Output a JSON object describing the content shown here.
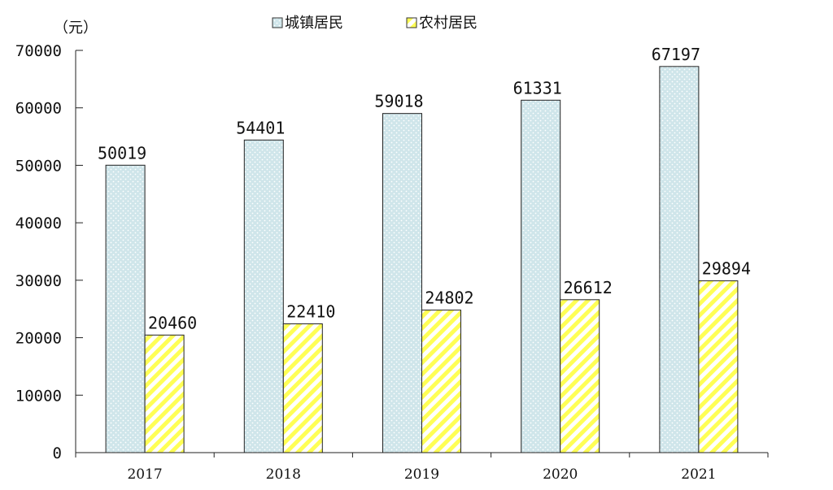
{
  "chart_data": {
    "type": "bar",
    "unit_label": "（元）",
    "categories": [
      "2017",
      "2018",
      "2019",
      "2020",
      "2021"
    ],
    "series": [
      {
        "name": "城镇居民",
        "values": [
          50019,
          54401,
          59018,
          61331,
          67197
        ],
        "labels": [
          "50019",
          "54401",
          "59018",
          "61331",
          "67197"
        ],
        "color": "#cfe5ea",
        "pattern": "dots"
      },
      {
        "name": "农村居民",
        "values": [
          20460,
          22410,
          24802,
          26612,
          29894
        ],
        "labels": [
          "20460",
          "22410",
          "24802",
          "26612",
          "29894"
        ],
        "color": "#ffff66",
        "pattern": "diagonal-stripes"
      }
    ],
    "ylim": [
      0,
      70000
    ],
    "yticks": [
      0,
      10000,
      20000,
      30000,
      40000,
      50000,
      60000,
      70000
    ],
    "ytick_labels": [
      "0",
      "10000",
      "20000",
      "30000",
      "40000",
      "50000",
      "60000",
      "70000"
    ],
    "grid": false,
    "legend_position": "top-center"
  }
}
